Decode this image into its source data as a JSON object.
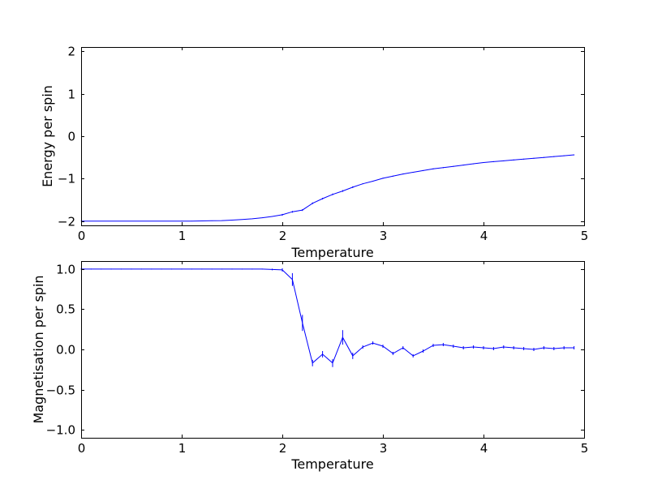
{
  "figure": {
    "background": "#ffffff"
  },
  "chart_data": [
    {
      "type": "line",
      "title": "",
      "xlabel": "Temperature",
      "ylabel": "Energy per spin",
      "xlim": [
        0,
        5
      ],
      "ylim": [
        -2.1,
        2.1
      ],
      "xticks": [
        0,
        1,
        2,
        3,
        4,
        5
      ],
      "xtick_labels": [
        "0",
        "1",
        "2",
        "3",
        "4",
        "5"
      ],
      "yticks": [
        -2,
        -1,
        0,
        1,
        2
      ],
      "ytick_labels": [
        "−2",
        "−1",
        "0",
        "1",
        "2"
      ],
      "grid": false,
      "legend": "none",
      "line_color": "#0000ff",
      "frame_color": "#000000",
      "x": [
        0.0,
        0.1,
        0.2,
        0.3,
        0.4,
        0.5,
        0.6,
        0.7,
        0.8,
        0.9,
        1.0,
        1.1,
        1.2,
        1.3,
        1.4,
        1.5,
        1.6,
        1.7,
        1.8,
        1.9,
        2.0,
        2.1,
        2.2,
        2.3,
        2.4,
        2.5,
        2.6,
        2.7,
        2.8,
        2.9,
        3.0,
        3.1,
        3.2,
        3.3,
        3.4,
        3.5,
        3.6,
        3.7,
        3.8,
        3.9,
        4.0,
        4.1,
        4.2,
        4.3,
        4.4,
        4.5,
        4.6,
        4.7,
        4.8,
        4.9
      ],
      "y": [
        -2.0,
        -2.0,
        -2.0,
        -2.0,
        -2.0,
        -2.0,
        -2.0,
        -2.0,
        -2.0,
        -2.0,
        -1.999,
        -1.998,
        -1.995,
        -1.992,
        -1.987,
        -1.975,
        -1.962,
        -1.945,
        -1.92,
        -1.89,
        -1.85,
        -1.78,
        -1.74,
        -1.58,
        -1.47,
        -1.37,
        -1.29,
        -1.2,
        -1.12,
        -1.06,
        -0.99,
        -0.94,
        -0.89,
        -0.85,
        -0.81,
        -0.77,
        -0.74,
        -0.71,
        -0.68,
        -0.65,
        -0.62,
        -0.6,
        -0.58,
        -0.56,
        -0.54,
        -0.52,
        -0.5,
        -0.48,
        -0.46,
        -0.44
      ],
      "yerr": [
        0.005,
        0.005,
        0.005,
        0.005,
        0.005,
        0.005,
        0.005,
        0.005,
        0.005,
        0.005,
        0.005,
        0.005,
        0.005,
        0.005,
        0.005,
        0.005,
        0.005,
        0.005,
        0.005,
        0.005,
        0.02,
        0.02,
        0.02,
        0.02,
        0.02,
        0.02,
        0.02,
        0.02,
        0.01,
        0.01,
        0.01,
        0.01,
        0.01,
        0.01,
        0.01,
        0.01,
        0.01,
        0.01,
        0.01,
        0.01,
        0.01,
        0.01,
        0.01,
        0.01,
        0.01,
        0.01,
        0.01,
        0.01,
        0.01,
        0.01
      ]
    },
    {
      "type": "line",
      "title": "",
      "xlabel": "Temperature",
      "ylabel": "Magnetisation per spin",
      "xlim": [
        0,
        5
      ],
      "ylim": [
        -1.1,
        1.1
      ],
      "xticks": [
        0,
        1,
        2,
        3,
        4,
        5
      ],
      "xtick_labels": [
        "0",
        "1",
        "2",
        "3",
        "4",
        "5"
      ],
      "yticks": [
        -1.0,
        -0.5,
        0.0,
        0.5,
        1.0
      ],
      "ytick_labels": [
        "−1.0",
        "−0.5",
        "0.0",
        "0.5",
        "1.0"
      ],
      "grid": false,
      "legend": "none",
      "line_color": "#0000ff",
      "frame_color": "#000000",
      "x": [
        0.0,
        0.1,
        0.2,
        0.3,
        0.4,
        0.5,
        0.6,
        0.7,
        0.8,
        0.9,
        1.0,
        1.1,
        1.2,
        1.3,
        1.4,
        1.5,
        1.6,
        1.7,
        1.8,
        1.9,
        2.0,
        2.1,
        2.2,
        2.3,
        2.4,
        2.5,
        2.6,
        2.7,
        2.8,
        2.9,
        3.0,
        3.1,
        3.2,
        3.3,
        3.4,
        3.5,
        3.6,
        3.7,
        3.8,
        3.9,
        4.0,
        4.1,
        4.2,
        4.3,
        4.4,
        4.5,
        4.6,
        4.7,
        4.8,
        4.9
      ],
      "y": [
        1.0,
        1.0,
        1.0,
        1.0,
        1.0,
        1.0,
        1.0,
        1.0,
        1.0,
        1.0,
        1.0,
        1.0,
        1.0,
        1.0,
        1.0,
        1.0,
        1.0,
        1.0,
        1.0,
        0.995,
        0.99,
        0.87,
        0.33,
        -0.17,
        -0.06,
        -0.17,
        0.15,
        -0.08,
        0.03,
        0.08,
        0.04,
        -0.05,
        0.02,
        -0.08,
        -0.02,
        0.05,
        0.06,
        0.04,
        0.02,
        0.03,
        0.02,
        0.01,
        0.03,
        0.02,
        0.01,
        0.0,
        0.02,
        0.01,
        0.02,
        0.02
      ],
      "yerr": [
        0.005,
        0.005,
        0.005,
        0.005,
        0.005,
        0.005,
        0.005,
        0.005,
        0.005,
        0.005,
        0.005,
        0.005,
        0.005,
        0.005,
        0.005,
        0.005,
        0.005,
        0.005,
        0.005,
        0.01,
        0.02,
        0.08,
        0.1,
        0.04,
        0.04,
        0.05,
        0.09,
        0.04,
        0.02,
        0.02,
        0.02,
        0.02,
        0.02,
        0.02,
        0.02,
        0.02,
        0.02,
        0.02,
        0.02,
        0.02,
        0.02,
        0.02,
        0.02,
        0.02,
        0.02,
        0.02,
        0.02,
        0.02,
        0.02,
        0.02
      ]
    }
  ]
}
